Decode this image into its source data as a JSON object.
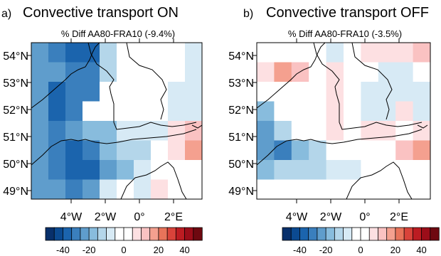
{
  "panels": [
    {
      "letter": "a)",
      "title": "Convective transport ON",
      "subtitle": "% Diff AA80-FRA10 (-9.4%)",
      "grid": [
        [
          4,
          3,
          2,
          2,
          6,
          8,
          9,
          9,
          9,
          7
        ],
        [
          4,
          4,
          3,
          3,
          6,
          8,
          9,
          9,
          9,
          7
        ],
        [
          4,
          2,
          3,
          3,
          8,
          9,
          9,
          9,
          7,
          7
        ],
        [
          4,
          2,
          3,
          8,
          8,
          9,
          9,
          8,
          7,
          7
        ],
        [
          4,
          3,
          4,
          5,
          5,
          7,
          7,
          7,
          10,
          11
        ],
        [
          4,
          3,
          2,
          3,
          5,
          6,
          6,
          8,
          10,
          12
        ],
        [
          4,
          3,
          2,
          2,
          4,
          5,
          7,
          8,
          8,
          8
        ],
        [
          4,
          4,
          3,
          4,
          7,
          8,
          7,
          10,
          8,
          8
        ]
      ]
    },
    {
      "letter": "b)",
      "title": "Convective transport OFF",
      "subtitle": "% Diff AA80-FRA10 (-3.5%)",
      "grid": [
        [
          8,
          8,
          8,
          8,
          7,
          9,
          10,
          10,
          10,
          11
        ],
        [
          10,
          12,
          11,
          8,
          10,
          9,
          9,
          7,
          7,
          9
        ],
        [
          8,
          8,
          8,
          8,
          10,
          9,
          7,
          7,
          7,
          7
        ],
        [
          5,
          8,
          8,
          8,
          10,
          9,
          7,
          7,
          10,
          7
        ],
        [
          4,
          6,
          8,
          8,
          10,
          9,
          10,
          10,
          9,
          10
        ],
        [
          4,
          3,
          5,
          6,
          8,
          8,
          9,
          8,
          11,
          12
        ],
        [
          5,
          6,
          6,
          6,
          7,
          7,
          8,
          8,
          8,
          8
        ],
        [
          8,
          8,
          8,
          8,
          8,
          8,
          9,
          8,
          8,
          8
        ]
      ]
    }
  ],
  "lat_labels": [
    "54°N",
    "53°N",
    "52°N",
    "51°N",
    "50°N",
    "49°N"
  ],
  "lon_labels": [
    "4°W",
    "2°W",
    "0°",
    "2°E"
  ],
  "colorbar": {
    "colors": [
      "#08306b",
      "#0b4a91",
      "#1b64ad",
      "#3a7fbd",
      "#5f9dcc",
      "#88bcdd",
      "#b4d6ea",
      "#d7eaf5",
      "#ffffff",
      "#ffffff",
      "#fde0e2",
      "#fac2c2",
      "#f4a08f",
      "#e8735a",
      "#d9433a",
      "#bc1c22",
      "#9b0d19",
      "#6e0810"
    ],
    "ticks": [
      "-40",
      "-20",
      "0",
      "20",
      "40"
    ]
  }
}
